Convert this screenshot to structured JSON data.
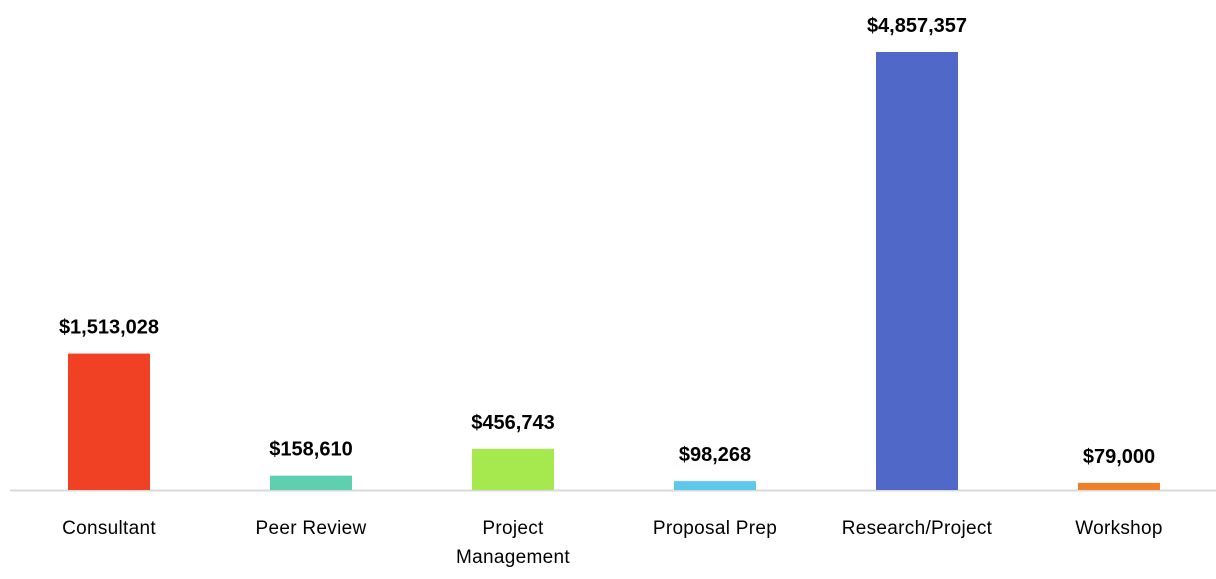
{
  "chart_data": {
    "type": "bar",
    "categories": [
      "Consultant",
      "Peer Review",
      "Project Management",
      "Proposal Prep",
      "Research/Project",
      "Workshop"
    ],
    "values": [
      1513028,
      158610,
      456743,
      98268,
      4857357,
      79000
    ],
    "value_labels": [
      "$1,513,028",
      "$158,610",
      "$456,743",
      "$98,268",
      "$4,857,357",
      "$79,000"
    ],
    "colors": [
      "#f04124",
      "#5dd0b0",
      "#a6e94e",
      "#5bc8ec",
      "#5068c8",
      "#f07f2a"
    ]
  }
}
